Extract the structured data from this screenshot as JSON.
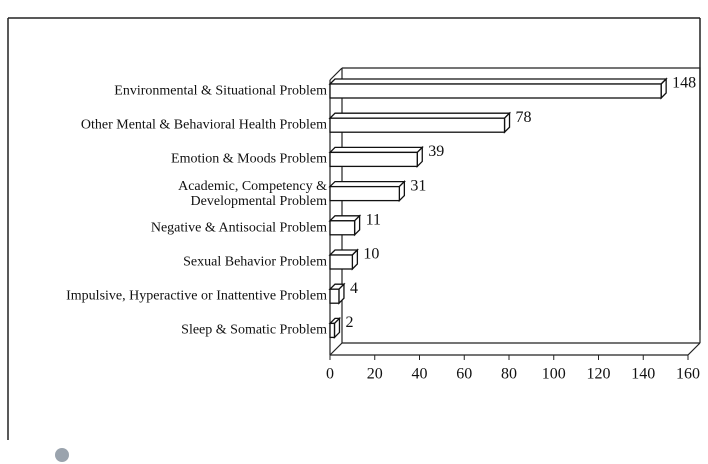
{
  "chart_data": {
    "type": "bar",
    "orientation": "horizontal",
    "categories": [
      "Environmental & Situational Problem",
      "Other Mental & Behavioral Health Problem",
      "Emotion & Moods Problem",
      "Academic, Competency &\nDevelopmental Problem",
      "Negative & Antisocial Problem",
      "Sexual Behavior Problem",
      "Impulsive, Hyperactive or Inattentive Problem",
      "Sleep & Somatic Problem"
    ],
    "values": [
      148,
      78,
      39,
      31,
      11,
      10,
      4,
      2
    ],
    "color": "#ffffff",
    "xlim": [
      0,
      160
    ],
    "xticks": [
      0,
      20,
      40,
      60,
      80,
      100,
      120,
      140,
      160
    ]
  }
}
